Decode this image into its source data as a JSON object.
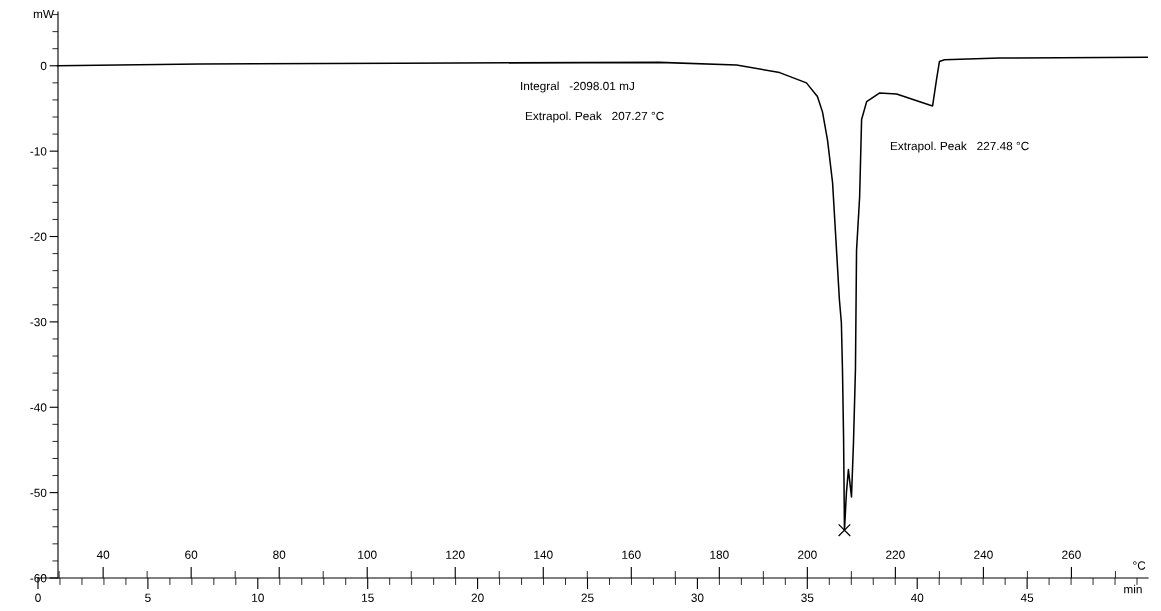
{
  "chart_data": {
    "type": "line",
    "xlabel": "min",
    "ylabel": "mW",
    "x2label": "°C",
    "xlim": [
      0,
      50.5
    ],
    "xticks": [
      0,
      5,
      10,
      15,
      20,
      25,
      30,
      35,
      40,
      45
    ],
    "x2lim": [
      25.2,
      277.4
    ],
    "x2ticks": [
      40,
      60,
      80,
      100,
      120,
      140,
      160,
      180,
      200,
      220,
      240,
      260
    ],
    "ylim": [
      -60,
      6.3
    ],
    "yticks": [
      -60,
      -50,
      -40,
      -30,
      -20,
      -10,
      0
    ],
    "grid": false,
    "legend": false,
    "annotations": [
      "Integral   -2098.01 mJ",
      "Extrapol. Peak   207.27 °C",
      "Extrapol. Peak   227.48 °C"
    ],
    "series": [
      {
        "color": "#000000",
        "marker": "none",
        "line_style": "solid",
        "x": [
          0.89,
          7.35,
          16.45,
          28.27,
          31.78,
          33.74,
          34.96,
          35.46,
          35.69,
          35.92,
          36.15,
          36.46,
          36.55,
          36.6,
          36.65,
          36.69,
          36.78,
          36.87,
          37.01,
          37.1,
          37.19,
          37.24,
          37.38,
          37.47,
          37.7,
          38.28,
          39.06,
          40.56,
          40.7,
          40.88,
          41.01,
          41.24,
          43.74,
          50.48
        ],
        "values": [
          0,
          0.2,
          0.3,
          0.4,
          0.1,
          -0.8,
          -2.0,
          -3.6,
          -5.4,
          -8.7,
          -13.7,
          -27.4,
          -30.1,
          -35.6,
          -43.5,
          -54.4,
          -50,
          -47.3,
          -50.5,
          -44.2,
          -35.6,
          -21.6,
          -15.4,
          -6.3,
          -4.2,
          -3.2,
          -3.3,
          -4.6,
          -4.7,
          -1.6,
          0.5,
          0.7,
          0.9,
          1.0
        ]
      },
      {
        "type": "scatter",
        "color": "#000000",
        "marker": "cross",
        "x": [
          36.69
        ],
        "values": [
          -54.4
        ]
      }
    ]
  }
}
